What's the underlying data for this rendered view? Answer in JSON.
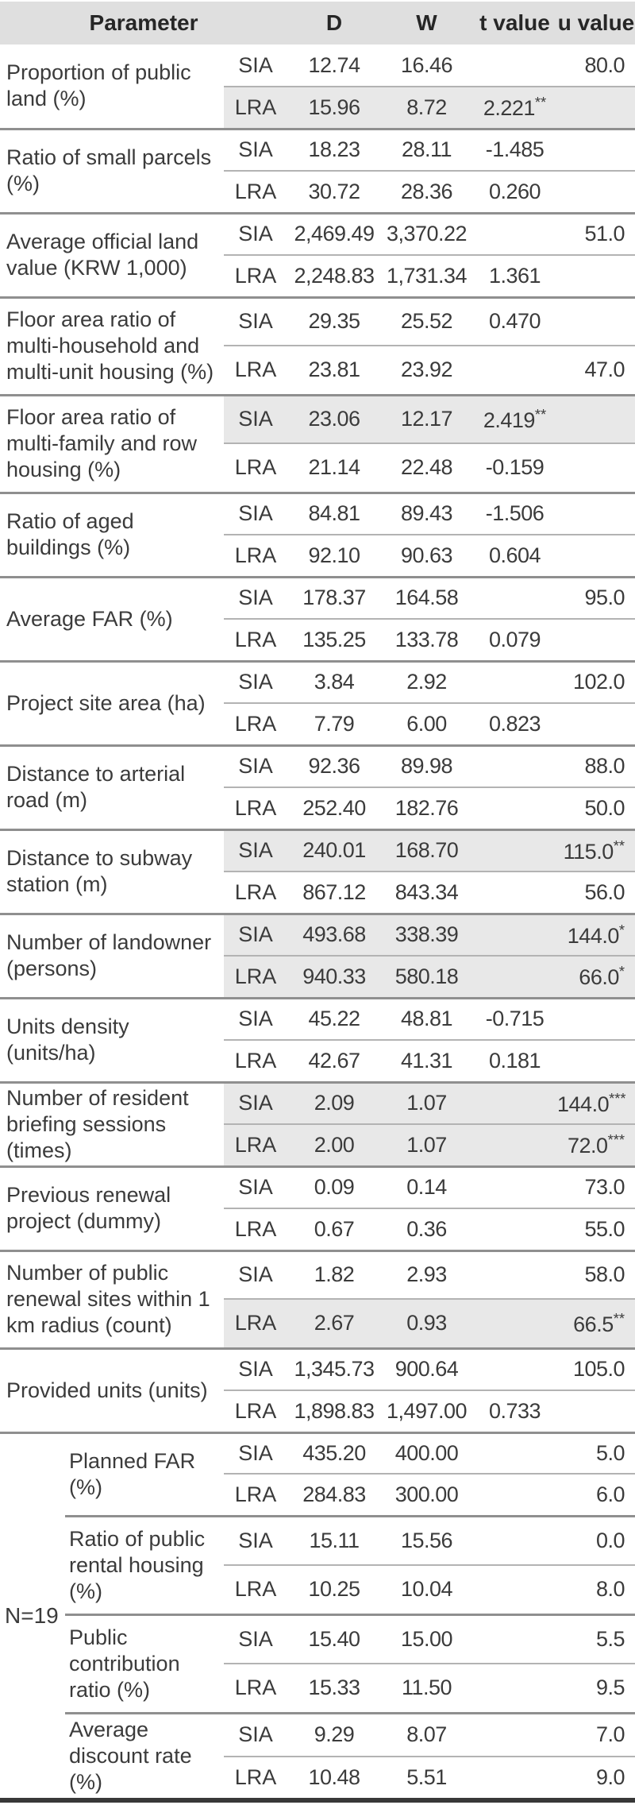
{
  "table": {
    "header": {
      "parameter": "Parameter",
      "d": "D",
      "w": "W",
      "t": "t value",
      "u": "u value"
    },
    "groups": [
      {
        "param": "Proportion of public land (%)",
        "rows": [
          {
            "label": "SIA",
            "d": "12.74",
            "w": "16.46",
            "t": "",
            "u": "80.0",
            "shaded": false
          },
          {
            "label": "LRA",
            "d": "15.96",
            "w": "8.72",
            "t": "2.221**",
            "u": "",
            "shaded": true
          }
        ]
      },
      {
        "param": "Ratio of small parcels (%)",
        "rows": [
          {
            "label": "SIA",
            "d": "18.23",
            "w": "28.11",
            "t": "-1.485",
            "u": "",
            "shaded": false
          },
          {
            "label": "LRA",
            "d": "30.72",
            "w": "28.36",
            "t": "0.260",
            "u": "",
            "shaded": false
          }
        ]
      },
      {
        "param": "Average official land value (KRW 1,000)",
        "rows": [
          {
            "label": "SIA",
            "d": "2,469.49",
            "w": "3,370.22",
            "t": "",
            "u": "51.0",
            "shaded": false
          },
          {
            "label": "LRA",
            "d": "2,248.83",
            "w": "1,731.34",
            "t": "1.361",
            "u": "",
            "shaded": false
          }
        ]
      },
      {
        "param": "Floor area ratio of multi-household and multi-unit housing (%)",
        "rows": [
          {
            "label": "SIA",
            "d": "29.35",
            "w": "25.52",
            "t": "0.470",
            "u": "",
            "shaded": false
          },
          {
            "label": "LRA",
            "d": "23.81",
            "w": "23.92",
            "t": "",
            "u": "47.0",
            "shaded": false
          }
        ]
      },
      {
        "param": "Floor area ratio of multi-family and row housing (%)",
        "rows": [
          {
            "label": "SIA",
            "d": "23.06",
            "w": "12.17",
            "t": "2.419**",
            "u": "",
            "shaded": true
          },
          {
            "label": "LRA",
            "d": "21.14",
            "w": "22.48",
            "t": "-0.159",
            "u": "",
            "shaded": false
          }
        ]
      },
      {
        "param": "Ratio of aged buildings (%)",
        "rows": [
          {
            "label": "SIA",
            "d": "84.81",
            "w": "89.43",
            "t": "-1.506",
            "u": "",
            "shaded": false
          },
          {
            "label": "LRA",
            "d": "92.10",
            "w": "90.63",
            "t": "0.604",
            "u": "",
            "shaded": false
          }
        ]
      },
      {
        "param": "Average FAR (%)",
        "rows": [
          {
            "label": "SIA",
            "d": "178.37",
            "w": "164.58",
            "t": "",
            "u": "95.0",
            "shaded": false
          },
          {
            "label": "LRA",
            "d": "135.25",
            "w": "133.78",
            "t": "0.079",
            "u": "",
            "shaded": false
          }
        ]
      },
      {
        "param": "Project site area (ha)",
        "rows": [
          {
            "label": "SIA",
            "d": "3.84",
            "w": "2.92",
            "t": "",
            "u": "102.0",
            "shaded": false
          },
          {
            "label": "LRA",
            "d": "7.79",
            "w": "6.00",
            "t": "0.823",
            "u": "",
            "shaded": false
          }
        ]
      },
      {
        "param": "Distance to arterial road (m)",
        "rows": [
          {
            "label": "SIA",
            "d": "92.36",
            "w": "89.98",
            "t": "",
            "u": "88.0",
            "shaded": false
          },
          {
            "label": "LRA",
            "d": "252.40",
            "w": "182.76",
            "t": "",
            "u": "50.0",
            "shaded": false
          }
        ]
      },
      {
        "param": "Distance to subway station (m)",
        "rows": [
          {
            "label": "SIA",
            "d": "240.01",
            "w": "168.70",
            "t": "",
            "u": "115.0**",
            "shaded": true
          },
          {
            "label": "LRA",
            "d": "867.12",
            "w": "843.34",
            "t": "",
            "u": "56.0",
            "shaded": false
          }
        ]
      },
      {
        "param": "Number of landowner (persons)",
        "rows": [
          {
            "label": "SIA",
            "d": "493.68",
            "w": "338.39",
            "t": "",
            "u": "144.0*",
            "shaded": true
          },
          {
            "label": "LRA",
            "d": "940.33",
            "w": "580.18",
            "t": "",
            "u": "66.0*",
            "shaded": true
          }
        ]
      },
      {
        "param": "Units density (units/ha)",
        "rows": [
          {
            "label": "SIA",
            "d": "45.22",
            "w": "48.81",
            "t": "-0.715",
            "u": "",
            "shaded": false
          },
          {
            "label": "LRA",
            "d": "42.67",
            "w": "41.31",
            "t": "0.181",
            "u": "",
            "shaded": false
          }
        ]
      },
      {
        "param": "Number of resident briefing sessions (times)",
        "rows": [
          {
            "label": "SIA",
            "d": "2.09",
            "w": "1.07",
            "t": "",
            "u": "144.0***",
            "shaded": true
          },
          {
            "label": "LRA",
            "d": "2.00",
            "w": "1.07",
            "t": "",
            "u": "72.0***",
            "shaded": true
          }
        ]
      },
      {
        "param": "Previous renewal project (dummy)",
        "rows": [
          {
            "label": "SIA",
            "d": "0.09",
            "w": "0.14",
            "t": "",
            "u": "73.0",
            "shaded": false
          },
          {
            "label": "LRA",
            "d": "0.67",
            "w": "0.36",
            "t": "",
            "u": "55.0",
            "shaded": false
          }
        ]
      },
      {
        "param": "Number of public renewal sites within 1 km radius (count)",
        "rows": [
          {
            "label": "SIA",
            "d": "1.82",
            "w": "2.93",
            "t": "",
            "u": "58.0",
            "shaded": false
          },
          {
            "label": "LRA",
            "d": "2.67",
            "w": "0.93",
            "t": "",
            "u": "66.5**",
            "shaded": true
          }
        ]
      },
      {
        "param": "Provided units (units)",
        "rows": [
          {
            "label": "SIA",
            "d": "1,345.73",
            "w": "900.64",
            "t": "",
            "u": "105.0",
            "shaded": false
          },
          {
            "label": "LRA",
            "d": "1,898.83",
            "w": "1,497.00",
            "t": "0.733",
            "u": "",
            "shaded": false
          }
        ]
      }
    ],
    "n19": {
      "label": "N=19",
      "groups": [
        {
          "param": "Planned FAR (%)",
          "rows": [
            {
              "label": "SIA",
              "d": "435.20",
              "w": "400.00",
              "t": "",
              "u": "5.0",
              "shaded": false
            },
            {
              "label": "LRA",
              "d": "284.83",
              "w": "300.00",
              "t": "",
              "u": "6.0",
              "shaded": false
            }
          ]
        },
        {
          "param": "Ratio of public rental housing (%)",
          "rows": [
            {
              "label": "SIA",
              "d": "15.11",
              "w": "15.56",
              "t": "",
              "u": "0.0",
              "shaded": false
            },
            {
              "label": "LRA",
              "d": "10.25",
              "w": "10.04",
              "t": "",
              "u": "8.0",
              "shaded": false
            }
          ]
        },
        {
          "param": "Public contribution ratio (%)",
          "rows": [
            {
              "label": "SIA",
              "d": "15.40",
              "w": "15.00",
              "t": "",
              "u": "5.5",
              "shaded": false
            },
            {
              "label": "LRA",
              "d": "15.33",
              "w": "11.50",
              "t": "",
              "u": "9.5",
              "shaded": false
            }
          ]
        },
        {
          "param": "Average discount rate (%)",
          "rows": [
            {
              "label": "SIA",
              "d": "9.29",
              "w": "8.07",
              "t": "",
              "u": "7.0",
              "shaded": false
            },
            {
              "label": "LRA",
              "d": "10.48",
              "w": "5.51",
              "t": "",
              "u": "9.0",
              "shaded": false
            }
          ]
        }
      ]
    }
  },
  "colors": {
    "header_bg": "#dfdfdf",
    "row_shade": "#e8e8e8",
    "rule_dark": "#383838",
    "rule_group": "#8f8f8f",
    "rule_inner": "#b3b3b3"
  }
}
